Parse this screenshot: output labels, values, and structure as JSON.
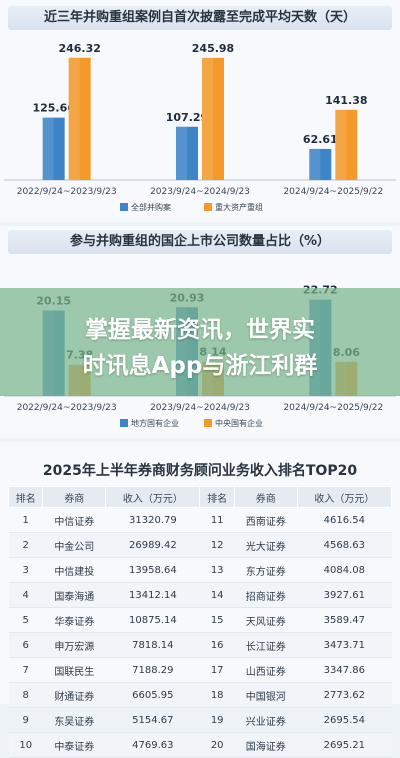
{
  "chart_data": [
    {
      "type": "bar",
      "title": "近三年并购重组案例自首次披露至完成平均天数（天）",
      "categories": [
        "2022/9/24~2023/9/23",
        "2023/9/24~2024/9/23",
        "2024/9/24~2025/9/22"
      ],
      "series": [
        {
          "name": "全部并购案",
          "values": [
            125.66,
            107.29,
            62.61
          ],
          "color": "#3d85c6"
        },
        {
          "name": "重大资产重组",
          "values": [
            246.32,
            245.98,
            141.38
          ],
          "color": "#f39a2b"
        }
      ],
      "value_labels": [
        [
          "125.66",
          "107.29",
          "62.61"
        ],
        [
          "246.32",
          "245.98",
          "141.38"
        ]
      ],
      "ylim": [
        0,
        270
      ],
      "legend": "bottom"
    },
    {
      "type": "bar",
      "title": "参与并购重组的国企上市公司数量占比（%）",
      "categories": [
        "2022/9/24~2023/9/23",
        "2023/9/24~2024/9/23",
        "2024/9/24~2025/9/22"
      ],
      "series": [
        {
          "name": "地方国有企业",
          "values": [
            20.15,
            20.93,
            22.72
          ],
          "color": "#3d85c6"
        },
        {
          "name": "中央国有企业",
          "values": [
            7.38,
            8.14,
            8.06
          ],
          "color": "#f39a2b"
        }
      ],
      "value_labels": [
        [
          "20.15",
          "20.93",
          "22.72"
        ],
        [
          "7.38",
          "8.14",
          "8.06"
        ]
      ],
      "ylim": [
        0,
        25
      ],
      "legend": "bottom"
    },
    {
      "type": "table",
      "title": "2025年上半年券商财务顾问业务收入排名TOP20",
      "columns": [
        "排名",
        "券商",
        "收入（万元）",
        "排名",
        "券商",
        "收入（万元）"
      ],
      "rows": [
        [
          "1",
          "中信证券",
          "31320.79",
          "11",
          "西南证券",
          "4616.54"
        ],
        [
          "2",
          "中金公司",
          "26989.42",
          "12",
          "光大证券",
          "4568.63"
        ],
        [
          "3",
          "中信建投",
          "13958.64",
          "13",
          "东方证券",
          "4084.08"
        ],
        [
          "4",
          "国泰海通",
          "13412.14",
          "14",
          "招商证券",
          "3927.61"
        ],
        [
          "5",
          "华泰证券",
          "10875.14",
          "15",
          "天风证券",
          "3589.47"
        ],
        [
          "6",
          "申万宏源",
          "7818.14",
          "16",
          "长江证券",
          "3473.71"
        ],
        [
          "7",
          "国联民生",
          "7188.29",
          "17",
          "山西证券",
          "3347.86"
        ],
        [
          "8",
          "财通证券",
          "6605.95",
          "18",
          "中国银河",
          "2773.62"
        ],
        [
          "9",
          "东吴证券",
          "5154.67",
          "19",
          "兴业证券",
          "2695.54"
        ],
        [
          "10",
          "中泰证券",
          "4769.63",
          "20",
          "国海证券",
          "2695.21"
        ]
      ]
    }
  ],
  "overlay": {
    "line1": "掌握最新资讯，世界实",
    "line2": "时讯息App与浙江利群"
  }
}
